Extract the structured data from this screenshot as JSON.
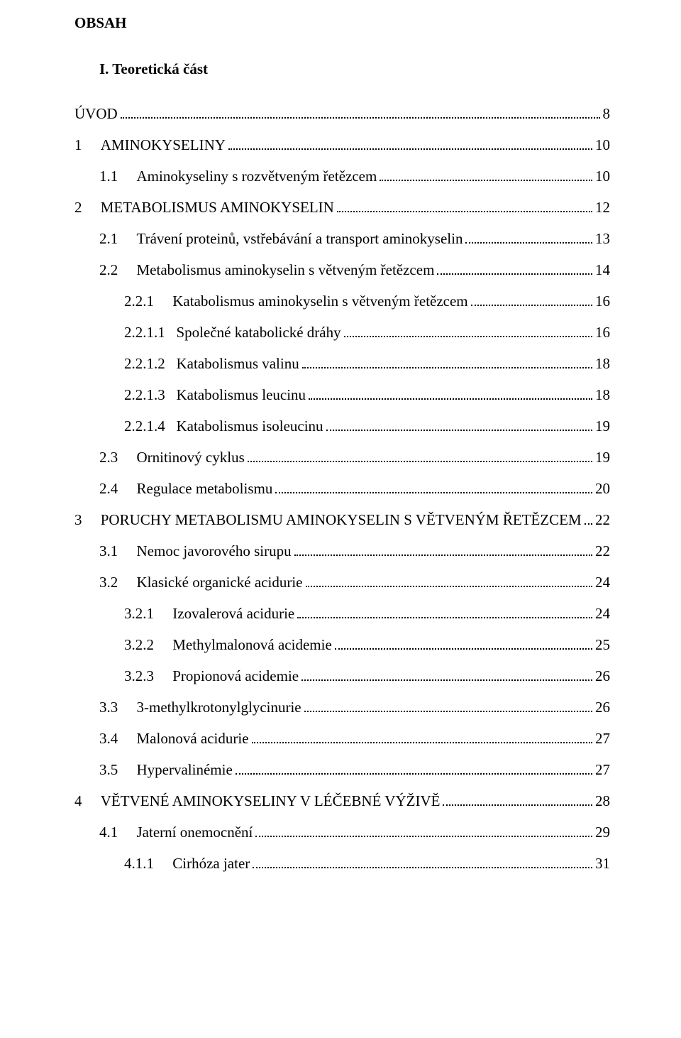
{
  "document": {
    "title": "OBSAH",
    "part_heading": "I. Teoretická část",
    "entries": [
      {
        "indent": 0,
        "num": "",
        "label": "ÚVOD",
        "page": "8"
      },
      {
        "indent": 0,
        "num": "1",
        "label": "AMINOKYSELINY",
        "page": "10"
      },
      {
        "indent": 1,
        "num": "1.1",
        "label": "Aminokyseliny s rozvětveným řetězcem",
        "page": "10"
      },
      {
        "indent": 0,
        "num": "2",
        "label": "METABOLISMUS AMINOKYSELIN",
        "page": "12"
      },
      {
        "indent": 1,
        "num": "2.1",
        "label": "Trávení proteinů, vstřebávání a transport aminokyselin",
        "page": "13"
      },
      {
        "indent": 1,
        "num": "2.2",
        "label": "Metabolismus aminokyselin s větveným řetězcem",
        "page": "14"
      },
      {
        "indent": 2,
        "num": "2.2.1",
        "label": "Katabolismus aminokyselin s větveným řetězcem",
        "page": "16"
      },
      {
        "indent": 2,
        "num": "2.2.1.1",
        "label": "Společné katabolické dráhy",
        "page": "16"
      },
      {
        "indent": 2,
        "num": "2.2.1.2",
        "label": "Katabolismus valinu",
        "page": "18"
      },
      {
        "indent": 2,
        "num": "2.2.1.3",
        "label": "Katabolismus leucinu",
        "page": "18"
      },
      {
        "indent": 2,
        "num": "2.2.1.4",
        "label": "Katabolismus isoleucinu",
        "page": "19"
      },
      {
        "indent": 1,
        "num": "2.3",
        "label": "Ornitinový cyklus",
        "page": "19"
      },
      {
        "indent": 1,
        "num": "2.4",
        "label": "Regulace metabolismu",
        "page": "20"
      },
      {
        "indent": 0,
        "num": "3",
        "label": "PORUCHY METABOLISMU AMINOKYSELIN S VĚTVENÝM ŘETĚZCEM",
        "page": "22"
      },
      {
        "indent": 1,
        "num": "3.1",
        "label": "Nemoc javorového sirupu",
        "page": "22"
      },
      {
        "indent": 1,
        "num": "3.2",
        "label": "Klasické organické acidurie",
        "page": "24"
      },
      {
        "indent": 2,
        "num": "3.2.1",
        "label": "Izovalerová acidurie",
        "page": "24"
      },
      {
        "indent": 2,
        "num": "3.2.2",
        "label": "Methylmalonová acidemie",
        "page": "25"
      },
      {
        "indent": 2,
        "num": "3.2.3",
        "label": "Propionová acidemie",
        "page": "26"
      },
      {
        "indent": 1,
        "num": "3.3",
        "label": "3-methylkrotonylglycinurie",
        "page": "26"
      },
      {
        "indent": 1,
        "num": "3.4",
        "label": "Malonová acidurie",
        "page": "27"
      },
      {
        "indent": 1,
        "num": "3.5",
        "label": "Hypervalinémie",
        "page": "27"
      },
      {
        "indent": 0,
        "num": "4",
        "label": "VĚTVENÉ AMINOKYSELINY V LÉČEBNÉ VÝŽIVĚ",
        "page": "28"
      },
      {
        "indent": 1,
        "num": "4.1",
        "label": "Jaterní onemocnění",
        "page": "29"
      },
      {
        "indent": 2,
        "num": "4.1.1",
        "label": "Cirhóza jater",
        "page": "31"
      }
    ],
    "num_pad": {
      "0": 6,
      "1": 8,
      "2": 10
    },
    "colors": {
      "text": "#000000",
      "background": "#ffffff"
    },
    "font_family": "Times New Roman",
    "font_size_pt": 16
  }
}
